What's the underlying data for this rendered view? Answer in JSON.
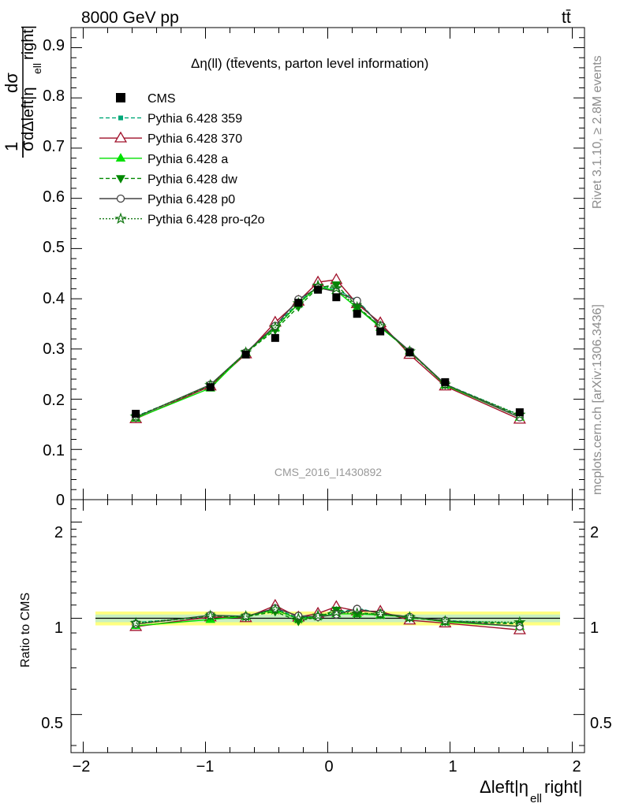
{
  "header": {
    "energy_label": "8000 GeV pp",
    "process_label": "tt̄",
    "plot_title": "Δη(ll) (tt̄events, parton level information)",
    "analysis_id": "CMS_2016_I1430892",
    "side_text_top": "Rivet 3.1.10, ≥ 2.8M events",
    "side_text_bottom": "mcplots.cern.ch [arXiv:1306.3436]"
  },
  "axes": {
    "main_ylabel": "1/σ dσ/dΔleft|η_ell right|",
    "main_ylabel_numer": "1",
    "main_ylabel_denom": "σ",
    "main_ylabel_dsigma": "dσ",
    "main_ylabel_dx": "dΔleft|η",
    "main_ylabel_sub": "ell",
    "main_ylabel_tail": "right|",
    "ratio_ylabel": "Ratio to CMS",
    "xlabel_pre": "Δleft|η",
    "xlabel_sub": "ell",
    "xlabel_post": "right|",
    "main_yticks": [
      "0",
      "0.1",
      "0.2",
      "0.3",
      "0.4",
      "0.5",
      "0.6",
      "0.7",
      "0.8",
      "0.9"
    ],
    "ratio_yticks": [
      "0.5",
      "1",
      "2"
    ],
    "xticks": [
      "−2",
      "−1",
      "0",
      "1",
      "2"
    ]
  },
  "chart_data": {
    "type": "line",
    "xlim": [
      -2.1,
      2.1
    ],
    "main_ylim": [
      0,
      0.94
    ],
    "ratio_ylim": [
      0.38,
      2.35
    ],
    "ratio_scale": "log",
    "x": [
      -1.57,
      -0.96,
      -0.67,
      -0.43,
      -0.24,
      -0.08,
      0.07,
      0.24,
      0.43,
      0.67,
      0.96,
      1.57
    ],
    "data": {
      "name": "CMS",
      "values": [
        0.171,
        0.224,
        0.289,
        0.322,
        0.392,
        0.418,
        0.403,
        0.37,
        0.335,
        0.293,
        0.234,
        0.174
      ],
      "color": "#000000"
    },
    "band_colors": {
      "outer": "#ffff80",
      "inner": "#c8f0c0"
    },
    "band_halfwidth": 0.05,
    "series": [
      {
        "name": "Pythia 6.428 359",
        "color": "#00a878",
        "dash": "5,3",
        "marker": "square",
        "values": [
          0.166,
          0.226,
          0.292,
          0.345,
          0.393,
          0.425,
          0.418,
          0.398,
          0.347,
          0.295,
          0.23,
          0.168
        ]
      },
      {
        "name": "Pythia 6.428 370",
        "color": "#a0102a",
        "dash": "",
        "marker": "triangle-open",
        "values": [
          0.161,
          0.226,
          0.29,
          0.353,
          0.395,
          0.433,
          0.438,
          0.39,
          0.352,
          0.289,
          0.226,
          0.16
        ]
      },
      {
        "name": "Pythia 6.428 a",
        "color": "#00e000",
        "dash": "",
        "marker": "triangle",
        "values": [
          0.162,
          0.222,
          0.293,
          0.342,
          0.39,
          0.424,
          0.416,
          0.382,
          0.343,
          0.296,
          0.228,
          0.164
        ]
      },
      {
        "name": "Pythia 6.428 dw",
        "color": "#008800",
        "dash": "5,3",
        "marker": "triangle-down",
        "values": [
          0.164,
          0.228,
          0.292,
          0.338,
          0.384,
          0.422,
          0.428,
          0.385,
          0.345,
          0.294,
          0.229,
          0.167
        ]
      },
      {
        "name": "Pythia 6.428 p0",
        "color": "#444444",
        "dash": "",
        "marker": "circle-open",
        "values": [
          0.164,
          0.229,
          0.293,
          0.346,
          0.399,
          0.422,
          0.414,
          0.396,
          0.347,
          0.296,
          0.23,
          0.164
        ]
      },
      {
        "name": "Pythia 6.428 pro-q2o",
        "color": "#117711",
        "dash": "2,2",
        "marker": "star",
        "values": [
          0.165,
          0.228,
          0.293,
          0.343,
          0.391,
          0.426,
          0.421,
          0.383,
          0.345,
          0.295,
          0.229,
          0.169
        ]
      }
    ]
  }
}
